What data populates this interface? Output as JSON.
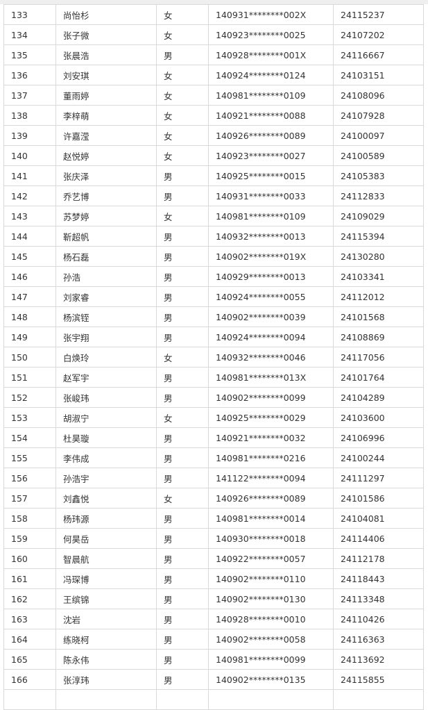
{
  "rows": [
    [
      "133",
      "尚怡杉",
      "女",
      "140931********002X",
      "24115237"
    ],
    [
      "134",
      "张子微",
      "女",
      "140923********0025",
      "24107202"
    ],
    [
      "135",
      "张晨浩",
      "男",
      "140928********001X",
      "24116667"
    ],
    [
      "136",
      "刘安琪",
      "女",
      "140924********0124",
      "24103151"
    ],
    [
      "137",
      "董雨婷",
      "女",
      "140981********0109",
      "24108096"
    ],
    [
      "138",
      "李梓萌",
      "女",
      "140921********0088",
      "24107928"
    ],
    [
      "139",
      "许嘉滢",
      "女",
      "140926********0089",
      "24100097"
    ],
    [
      "140",
      "赵悦婷",
      "女",
      "140923********0027",
      "24100589"
    ],
    [
      "141",
      "张庆泽",
      "男",
      "140925********0015",
      "24105383"
    ],
    [
      "142",
      "乔艺博",
      "男",
      "140931********0033",
      "24112833"
    ],
    [
      "143",
      "苏梦婷",
      "女",
      "140981********0109",
      "24109029"
    ],
    [
      "144",
      "靳超帆",
      "男",
      "140932********0013",
      "24115394"
    ],
    [
      "145",
      "杨石磊",
      "男",
      "140902********019X",
      "24130280"
    ],
    [
      "146",
      "孙浩",
      "男",
      "140929********0013",
      "24103341"
    ],
    [
      "147",
      "刘家睿",
      "男",
      "140924********0055",
      "24112012"
    ],
    [
      "148",
      "杨滨铚",
      "男",
      "140902********0039",
      "24101568"
    ],
    [
      "149",
      "张宇翔",
      "男",
      "140924********0094",
      "24108869"
    ],
    [
      "150",
      "白焕玲",
      "女",
      "140932********0046",
      "24117056"
    ],
    [
      "151",
      "赵军宇",
      "男",
      "140981********013X",
      "24101764"
    ],
    [
      "152",
      "张峻玮",
      "男",
      "140902********0099",
      "24104289"
    ],
    [
      "153",
      "胡淑宁",
      "女",
      "140925********0029",
      "24103600"
    ],
    [
      "154",
      "杜昊璇",
      "男",
      "140921********0032",
      "24106996"
    ],
    [
      "155",
      "李伟成",
      "男",
      "140981********0216",
      "24100244"
    ],
    [
      "156",
      "孙浩宇",
      "男",
      "141122********0094",
      "24111297"
    ],
    [
      "157",
      "刘鑫悦",
      "女",
      "140926********0089",
      "24101586"
    ],
    [
      "158",
      "杨玮源",
      "男",
      "140981********0014",
      "24104081"
    ],
    [
      "159",
      "何昊岳",
      "男",
      "140930********0018",
      "24114406"
    ],
    [
      "160",
      "智晨航",
      "男",
      "140922********0057",
      "24112178"
    ],
    [
      "161",
      "冯琛博",
      "男",
      "140902********0110",
      "24118443"
    ],
    [
      "162",
      "王缤锦",
      "男",
      "140902********0130",
      "24113348"
    ],
    [
      "163",
      "沈岩",
      "男",
      "140928********0010",
      "24110426"
    ],
    [
      "164",
      "练晓柯",
      "男",
      "140902********0058",
      "24116363"
    ],
    [
      "165",
      "陈永伟",
      "男",
      "140981********0099",
      "24113692"
    ],
    [
      "166",
      "张淳玮",
      "男",
      "140902********0135",
      "24115855"
    ],
    [
      "",
      "",
      "",
      "",
      ""
    ]
  ]
}
